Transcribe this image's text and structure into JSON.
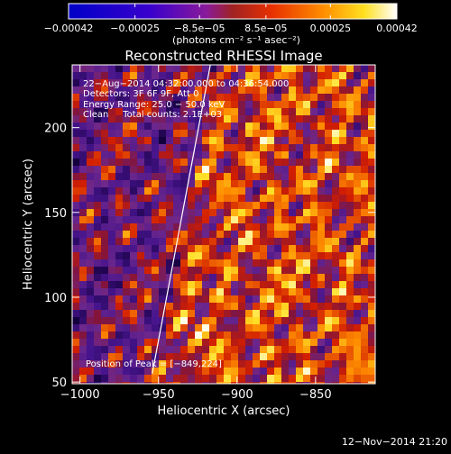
{
  "chart_data": {
    "type": "heatmap",
    "title": "Reconstructed RHESSI Image",
    "xlabel": "Heliocentric X (arcsec)",
    "ylabel": "Heliocentric Y (arcsec)",
    "xlim": [
      -1005,
      -812
    ],
    "ylim": [
      49,
      237
    ],
    "x_ticks": [
      -1000,
      -950,
      -900,
      -850
    ],
    "x_tick_labels": [
      "−1000",
      "−950",
      "−900",
      "−850"
    ],
    "y_ticks": [
      50,
      100,
      150,
      200
    ],
    "y_tick_labels": [
      "50",
      "100",
      "150",
      "200"
    ],
    "colorbar": {
      "range": [
        -0.00042,
        0.00042
      ],
      "ticks": [
        -0.00042,
        -0.00025,
        -8.5e-05,
        8.5e-05,
        0.00025,
        0.00042
      ],
      "tick_labels": [
        "−0.00042",
        "−0.00025",
        "−8.5e−05",
        "8.5e−05",
        "0.00025",
        "0.00042"
      ],
      "unit_label": "(photons cm⁻² s⁻¹ asec⁻²)"
    },
    "annotations": [
      "22−Aug−2014 04:32:00.000 to 04:36:54.000",
      "Detectors: 3F 6F 9F, Att 0",
      "Energy Range: 25.0 − 50.0 keV",
      "Clean     Total counts: 2.1E+03"
    ],
    "peak_label": "Position of Peak = [−849,224]",
    "limb_line": {
      "x": [
        -954,
        -917
      ],
      "y": [
        55,
        237
      ]
    },
    "footer": "12−Nov−2014 21:20"
  }
}
